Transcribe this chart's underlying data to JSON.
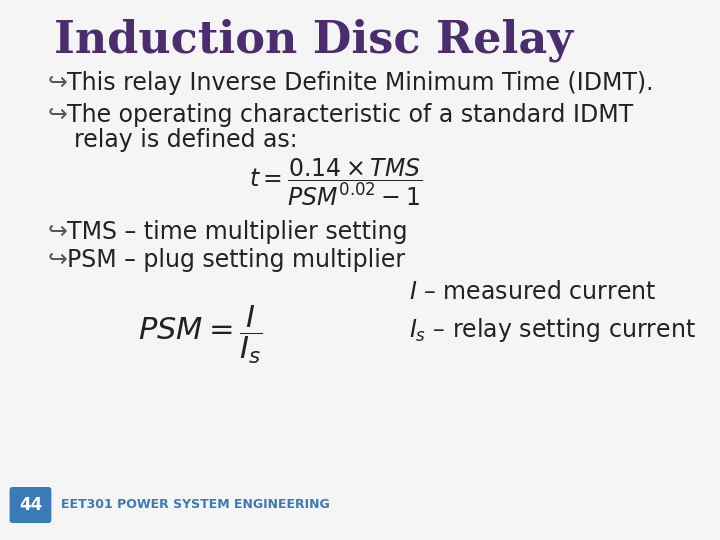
{
  "title": "Induction Disc Relay",
  "title_color": "#4B2D6E",
  "title_fontsize": 32,
  "bg_color": "#F5F5F5",
  "border_color": "#CCCCCC",
  "slide_num": "44",
  "footer": "EET301 POWER SYSTEM ENGINEERING",
  "bullet_color": "#333333",
  "bullet_fontsize": 17,
  "bullet1": "This relay Inverse Definite Minimum Time (IDMT).",
  "bullet2a": "The operating characteristic of a standard IDMT",
  "bullet2b": "relay is defined as:",
  "tms_label": "TMS – time multiplier setting",
  "psm_label": "PSM – plug setting multiplier",
  "annotation1": "measured current",
  "annotation2": "relay setting current",
  "footer_color": "#3A7AB8",
  "badge_color": "#3A7AB8",
  "badge_text_color": "#FFFFFF"
}
